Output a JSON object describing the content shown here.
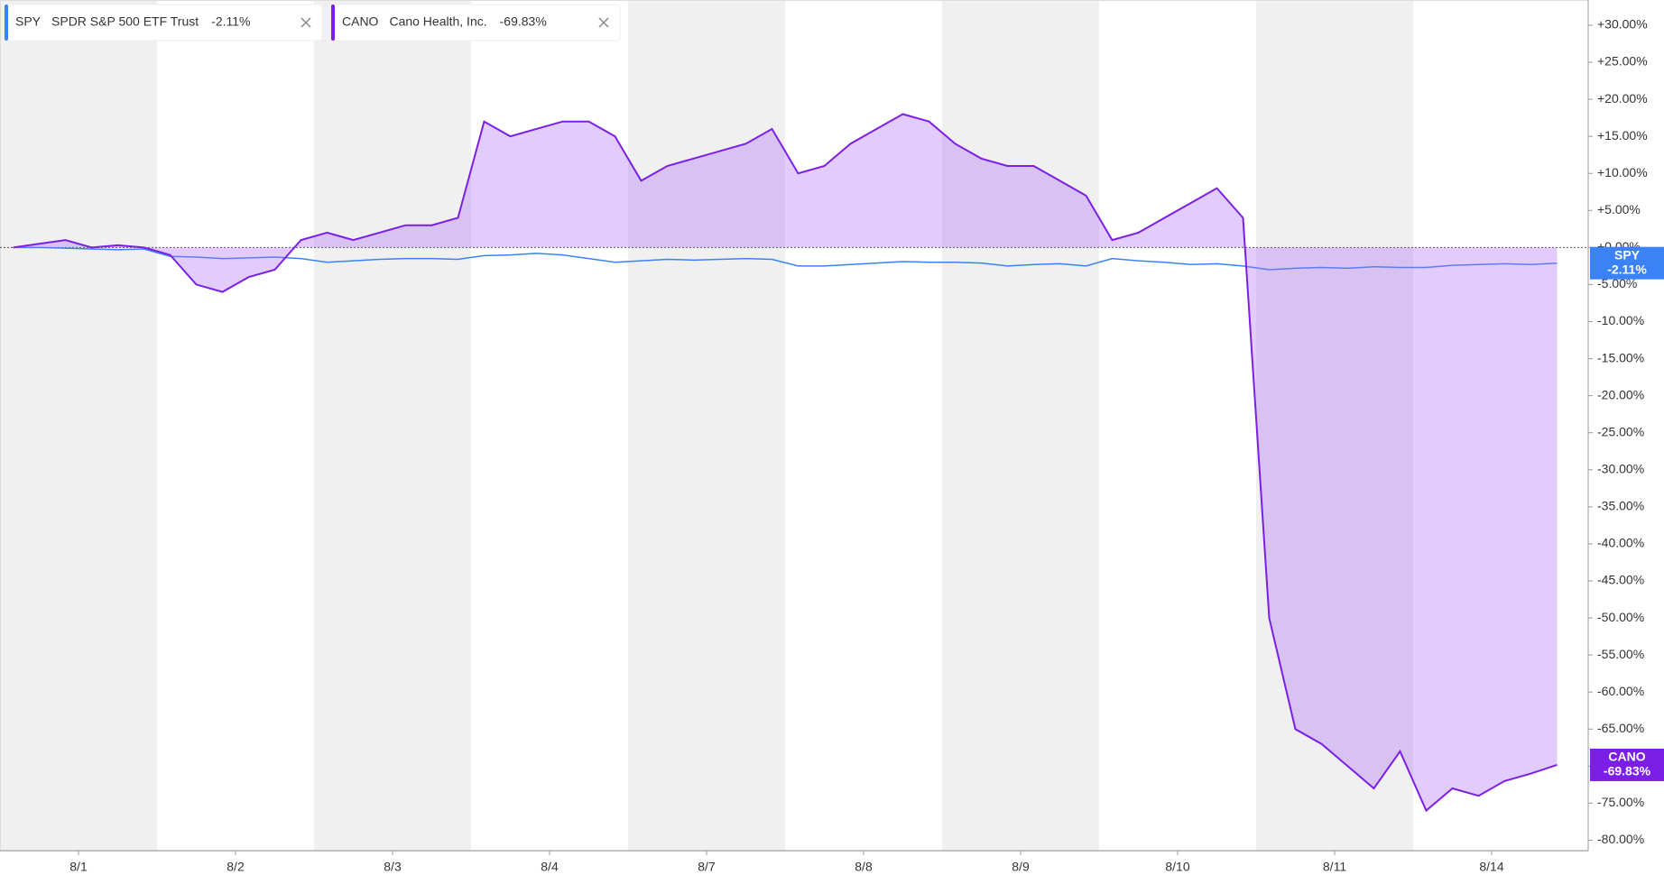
{
  "chart_data": {
    "type": "line",
    "x": [
      null,
      null,
      null,
      "8/1",
      null,
      null,
      null,
      null,
      null,
      "8/2",
      null,
      null,
      null,
      null,
      null,
      "8/3",
      null,
      null,
      null,
      null,
      null,
      "8/4",
      null,
      null,
      null,
      null,
      null,
      "8/7",
      null,
      null,
      null,
      null,
      null,
      "8/8",
      null,
      null,
      null,
      null,
      null,
      "8/9",
      null,
      null,
      null,
      null,
      null,
      "8/10",
      null,
      null,
      null,
      null,
      null,
      "8/11",
      null,
      null,
      null,
      null,
      null,
      "8/14",
      null,
      null
    ],
    "series": [
      {
        "name": "SPY",
        "description": "SPDR S&P 500 ETF Trust",
        "change_label": "-2.11%",
        "color": "#3b82f6",
        "values": [
          0,
          0,
          -0.1,
          -0.2,
          -0.3,
          -0.2,
          -1.2,
          -1.3,
          -1.5,
          -1.4,
          -1.3,
          -1.5,
          -2,
          -1.8,
          -1.6,
          -1.5,
          -1.5,
          -1.6,
          -1.1,
          -1,
          -0.8,
          -1,
          -1.5,
          -2,
          -1.8,
          -1.6,
          -1.7,
          -1.6,
          -1.5,
          -1.6,
          -2.5,
          -2.5,
          -2.3,
          -2.1,
          -1.9,
          -2,
          -2,
          -2.1,
          -2.5,
          -2.3,
          -2.2,
          -2.5,
          -1.5,
          -1.8,
          -2,
          -2.3,
          -2.2,
          -2.5,
          -3,
          -2.8,
          -2.7,
          -2.8,
          -2.6,
          -2.7,
          -2.7,
          -2.4,
          -2.3,
          -2.2,
          -2.3,
          -2.11
        ]
      },
      {
        "name": "CANO",
        "description": "Cano Health, Inc.",
        "change_label": "-69.83%",
        "color": "#7c1fe6",
        "values": [
          0,
          0.5,
          1,
          0,
          0.3,
          0,
          -1,
          -5,
          -6,
          -4,
          -3,
          1,
          2,
          1,
          2,
          3,
          3,
          4,
          17,
          15,
          16,
          17,
          17,
          15,
          9,
          11,
          12,
          13,
          14,
          16,
          10,
          11,
          14,
          16,
          18,
          17,
          14,
          12,
          11,
          11,
          9,
          7,
          1,
          2,
          4,
          6,
          8,
          4,
          -50,
          -65,
          -67,
          -70,
          -73,
          -68,
          -76,
          -73,
          -74,
          -72,
          -71,
          -69.83
        ]
      }
    ],
    "ylim": [
      -81.4,
      33.4
    ],
    "yticks": [
      {
        "value": 30,
        "label": "+30.00%"
      },
      {
        "value": 25,
        "label": "+25.00%"
      },
      {
        "value": 20,
        "label": "+20.00%"
      },
      {
        "value": 15,
        "label": "+15.00%"
      },
      {
        "value": 10,
        "label": "+10.00%"
      },
      {
        "value": 5,
        "label": "+5.00%"
      },
      {
        "value": 0,
        "label": "+0.00%"
      },
      {
        "value": -5,
        "label": "-5.00%"
      },
      {
        "value": -10,
        "label": "-10.00%"
      },
      {
        "value": -15,
        "label": "-15.00%"
      },
      {
        "value": -20,
        "label": "-20.00%"
      },
      {
        "value": -25,
        "label": "-25.00%"
      },
      {
        "value": -30,
        "label": "-30.00%"
      },
      {
        "value": -35,
        "label": "-35.00%"
      },
      {
        "value": -40,
        "label": "-40.00%"
      },
      {
        "value": -45,
        "label": "-45.00%"
      },
      {
        "value": -50,
        "label": "-50.00%"
      },
      {
        "value": -55,
        "label": "-55.00%"
      },
      {
        "value": -60,
        "label": "-60.00%"
      },
      {
        "value": -65,
        "label": "-65.00%"
      },
      {
        "value": -70,
        "label": "-70.00%"
      },
      {
        "value": -75,
        "label": "-75.00%"
      },
      {
        "value": -80,
        "label": "-80.00%"
      }
    ]
  }
}
